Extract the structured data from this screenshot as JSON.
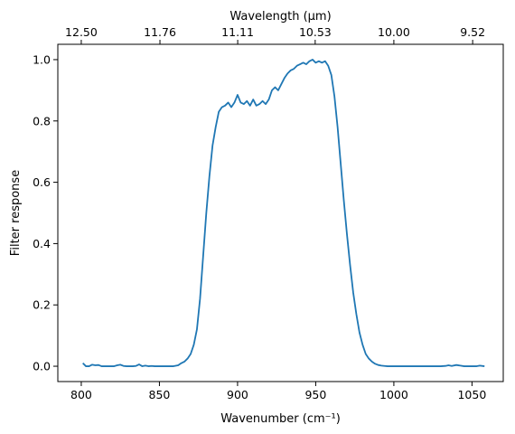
{
  "chart_data": {
    "type": "line",
    "xlabel": "Wavenumber (cm⁻¹)",
    "ylabel": "Filter response",
    "top_xlabel": "Wavelength (μm)",
    "xlim": [
      785,
      1070
    ],
    "ylim": [
      -0.05,
      1.05
    ],
    "x_ticks": [
      800,
      850,
      900,
      950,
      1000,
      1050
    ],
    "y_ticks": [
      0.0,
      0.2,
      0.4,
      0.6,
      0.8,
      1.0
    ],
    "y_tick_labels": [
      "0.0",
      "0.2",
      "0.4",
      "0.6",
      "0.8",
      "1.0"
    ],
    "top_ticks": [
      {
        "wavenumber": 800,
        "label": "12.50"
      },
      {
        "wavenumber": 850.34,
        "label": "11.76"
      },
      {
        "wavenumber": 900.09,
        "label": "11.11"
      },
      {
        "wavenumber": 949.67,
        "label": "10.53"
      },
      {
        "wavenumber": 1000,
        "label": "10.00"
      },
      {
        "wavenumber": 1050.42,
        "label": "9.52"
      }
    ],
    "grid": false,
    "line_color": "#1f77b4",
    "series": [
      {
        "x": [
          801,
          803,
          805,
          807,
          809,
          811,
          813,
          815,
          817,
          819,
          821,
          823,
          825,
          827,
          829,
          831,
          833,
          835,
          837,
          839,
          841,
          843,
          845,
          847,
          850,
          853,
          856,
          859,
          862,
          864,
          866,
          868,
          870,
          872,
          874,
          876,
          878,
          880,
          882,
          884,
          886,
          888,
          890,
          892,
          894,
          896,
          898,
          900,
          902,
          904,
          906,
          908,
          910,
          912,
          914,
          916,
          918,
          920,
          922,
          924,
          926,
          928,
          930,
          932,
          934,
          936,
          938,
          940,
          942,
          944,
          946,
          948,
          950,
          952,
          954,
          956,
          958,
          960,
          962,
          964,
          966,
          968,
          970,
          972,
          974,
          976,
          978,
          980,
          982,
          984,
          986,
          988,
          990,
          992,
          994,
          996,
          998,
          1000,
          1005,
          1010,
          1015,
          1020,
          1025,
          1030,
          1033,
          1035,
          1037,
          1040,
          1045,
          1050,
          1053,
          1055,
          1058
        ],
        "y": [
          0.01,
          0.0,
          0.0,
          0.005,
          0.003,
          0.004,
          0.0,
          0.0,
          0.0,
          0.0,
          0.0,
          0.003,
          0.005,
          0.001,
          0.0,
          0.0,
          0.0,
          0.001,
          0.006,
          0.0,
          0.002,
          0.0,
          0.001,
          0.0,
          0.0,
          0.0,
          0.0,
          0.0,
          0.003,
          0.01,
          0.015,
          0.025,
          0.04,
          0.07,
          0.12,
          0.22,
          0.36,
          0.5,
          0.62,
          0.72,
          0.78,
          0.83,
          0.845,
          0.85,
          0.86,
          0.845,
          0.86,
          0.885,
          0.86,
          0.855,
          0.865,
          0.85,
          0.87,
          0.85,
          0.855,
          0.865,
          0.855,
          0.87,
          0.9,
          0.91,
          0.9,
          0.92,
          0.94,
          0.955,
          0.965,
          0.97,
          0.98,
          0.985,
          0.99,
          0.985,
          0.995,
          1.0,
          0.99,
          0.995,
          0.99,
          0.995,
          0.98,
          0.95,
          0.88,
          0.78,
          0.66,
          0.54,
          0.43,
          0.33,
          0.24,
          0.17,
          0.11,
          0.07,
          0.04,
          0.025,
          0.015,
          0.008,
          0.004,
          0.002,
          0.001,
          0.0,
          0.0,
          0.0,
          0.0,
          0.0,
          0.0,
          0.0,
          0.0,
          0.0,
          0.001,
          0.003,
          0.001,
          0.004,
          0.0,
          0.0,
          0.0,
          0.002,
          0.0
        ]
      }
    ]
  }
}
